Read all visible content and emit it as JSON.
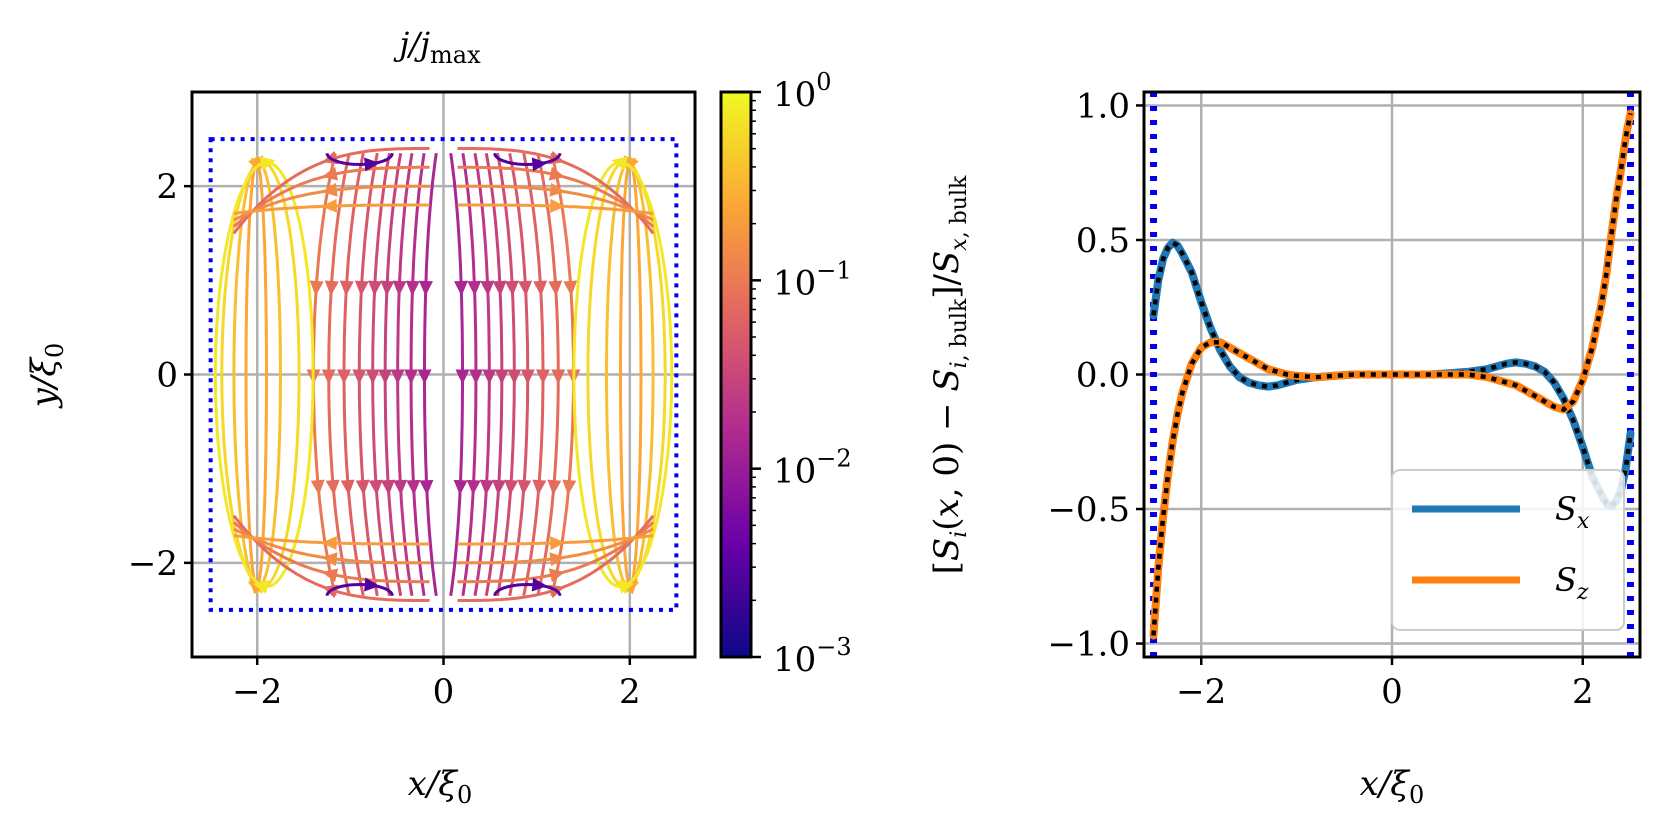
{
  "chart_data": [
    {
      "type": "streamplot",
      "title": "j/j_max",
      "xlabel": "x/ξ0",
      "ylabel": "y/ξ0",
      "xlim": [
        -2.7,
        2.7
      ],
      "ylim": [
        -3.0,
        3.0
      ],
      "xticks": [
        -2,
        0,
        2
      ],
      "yticks": [
        -2,
        0,
        2
      ],
      "xtick_labels": [
        "−2",
        "0",
        "2"
      ],
      "ytick_labels": [
        "−2",
        "0",
        "2"
      ],
      "grid": true,
      "boundary_box": {
        "xmin": -2.5,
        "xmax": 2.5,
        "ymin": -2.5,
        "ymax": 2.5,
        "color": "#0000ee",
        "style": "dotted"
      },
      "colorbar": {
        "label": "j/j_max",
        "scale": "log",
        "colormap": "plasma",
        "range": [
          0.001,
          1
        ],
        "ticks": [
          {
            "base": "10",
            "exp": "0",
            "value": 1
          },
          {
            "base": "10",
            "exp": "−1",
            "value": 0.1
          },
          {
            "base": "10",
            "exp": "−2",
            "value": 0.01
          },
          {
            "base": "10",
            "exp": "−3",
            "value": 0.001
          }
        ],
        "colors": [
          "#0d0887",
          "#6a00a8",
          "#b12a90",
          "#e16462",
          "#fca636",
          "#f0f921"
        ]
      }
    },
    {
      "type": "line",
      "xlabel": "x/ξ0",
      "ylabel": "[S_i(x,0) − S_i,bulk]/S_x,bulk",
      "xlim": [
        -2.6,
        2.6
      ],
      "ylim": [
        -1.05,
        1.05
      ],
      "xticks": [
        -2,
        0,
        2
      ],
      "yticks": [
        -1.0,
        -0.5,
        0.0,
        0.5,
        1.0
      ],
      "xtick_labels": [
        "−2",
        "0",
        "2"
      ],
      "ytick_labels": [
        "−1.0",
        "−0.5",
        "0.0",
        "0.5",
        "1.0"
      ],
      "grid": true,
      "legend_position": "lower-right",
      "boundary_lines": [
        -2.5,
        2.5
      ],
      "series": [
        {
          "name": "S_x",
          "color": "#1f77b4",
          "x": [
            -2.5,
            -2.45,
            -2.4,
            -2.35,
            -2.3,
            -2.25,
            -2.2,
            -2.1,
            -2.0,
            -1.9,
            -1.8,
            -1.7,
            -1.6,
            -1.5,
            -1.4,
            -1.3,
            -1.2,
            -1.1,
            -1.0,
            -0.8,
            -0.6,
            -0.4,
            -0.2,
            0.0,
            0.2,
            0.4,
            0.6,
            0.8,
            1.0,
            1.1,
            1.2,
            1.3,
            1.4,
            1.5,
            1.6,
            1.7,
            1.8,
            1.9,
            2.0,
            2.1,
            2.2,
            2.25,
            2.3,
            2.35,
            2.4,
            2.45,
            2.5
          ],
          "y": [
            0.22,
            0.35,
            0.43,
            0.47,
            0.49,
            0.48,
            0.45,
            0.38,
            0.27,
            0.17,
            0.09,
            0.03,
            -0.01,
            -0.03,
            -0.04,
            -0.045,
            -0.04,
            -0.03,
            -0.02,
            -0.01,
            -0.005,
            0.0,
            0.0,
            0.0,
            0.0,
            0.0,
            0.005,
            0.01,
            0.02,
            0.03,
            0.04,
            0.045,
            0.04,
            0.03,
            0.01,
            -0.03,
            -0.09,
            -0.17,
            -0.27,
            -0.38,
            -0.45,
            -0.48,
            -0.49,
            -0.47,
            -0.43,
            -0.35,
            -0.22
          ]
        },
        {
          "name": "S_z",
          "color": "#ff7f0e",
          "x": [
            -2.5,
            -2.45,
            -2.4,
            -2.35,
            -2.3,
            -2.25,
            -2.2,
            -2.1,
            -2.0,
            -1.9,
            -1.8,
            -1.7,
            -1.6,
            -1.5,
            -1.4,
            -1.3,
            -1.2,
            -1.1,
            -1.0,
            -0.8,
            -0.6,
            -0.4,
            -0.2,
            0.0,
            0.2,
            0.4,
            0.6,
            0.8,
            1.0,
            1.1,
            1.2,
            1.3,
            1.4,
            1.5,
            1.6,
            1.7,
            1.8,
            1.9,
            2.0,
            2.1,
            2.2,
            2.25,
            2.3,
            2.35,
            2.4,
            2.45,
            2.5
          ],
          "y": [
            -0.97,
            -0.72,
            -0.53,
            -0.38,
            -0.25,
            -0.15,
            -0.07,
            0.04,
            0.1,
            0.12,
            0.12,
            0.1,
            0.08,
            0.06,
            0.04,
            0.02,
            0.01,
            0.0,
            -0.005,
            -0.01,
            -0.005,
            0.0,
            0.0,
            0.0,
            0.0,
            0.0,
            0.0,
            0.0,
            -0.01,
            -0.02,
            -0.03,
            -0.04,
            -0.06,
            -0.08,
            -0.1,
            -0.12,
            -0.13,
            -0.1,
            -0.02,
            0.1,
            0.27,
            0.38,
            0.52,
            0.65,
            0.76,
            0.88,
            0.97
          ]
        }
      ],
      "legend": [
        {
          "name": "S",
          "sub": "x"
        },
        {
          "name": "S",
          "sub": "z"
        }
      ]
    }
  ]
}
